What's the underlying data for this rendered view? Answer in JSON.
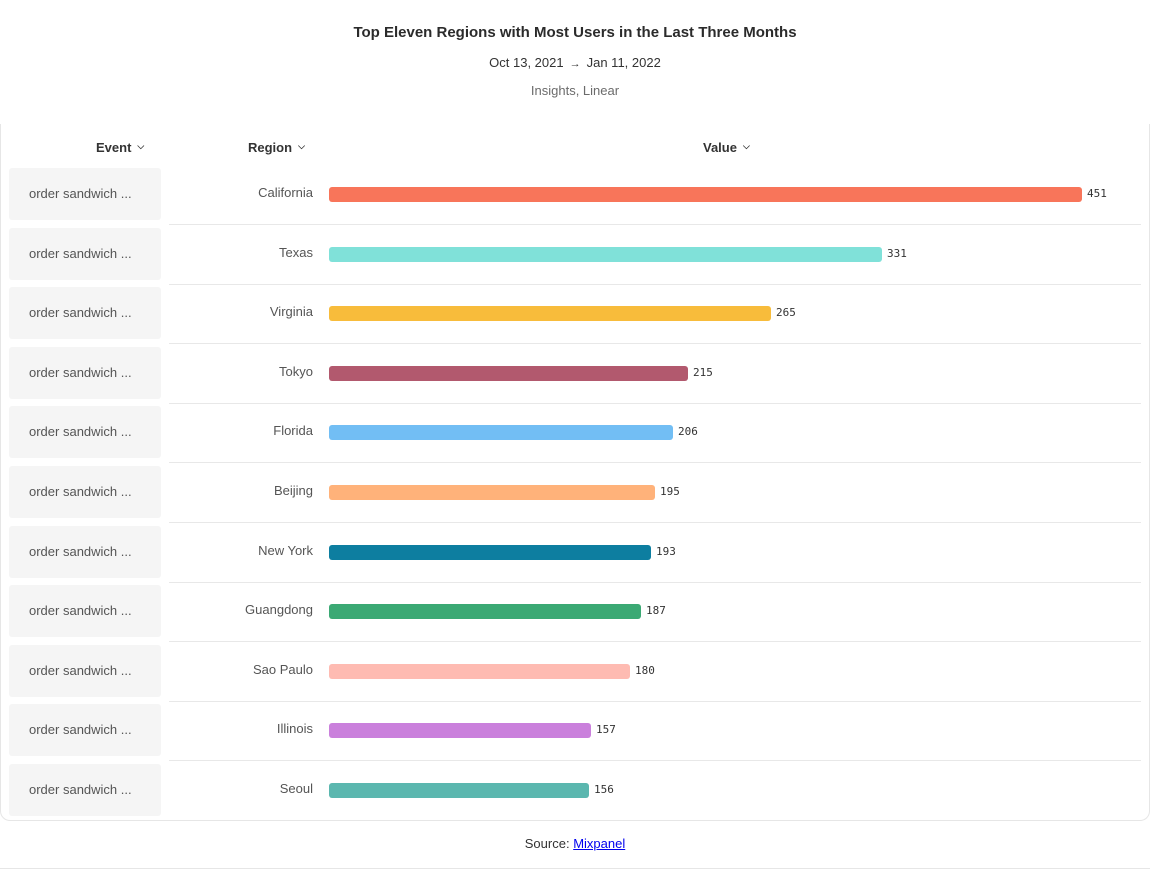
{
  "header": {
    "title": "Top Eleven Regions with Most Users in the Last Three Months",
    "date_start": "Oct 13, 2021",
    "date_arrow": "→",
    "date_end": "Jan 11, 2022",
    "meta": "Insights, Linear"
  },
  "columns": {
    "event": "Event",
    "region": "Region",
    "value": "Value"
  },
  "footer": {
    "source_label": "Source:",
    "source_link": "Mixpanel"
  },
  "chart_data": {
    "type": "bar",
    "orientation": "horizontal",
    "title": "Top Eleven Regions with Most Users in the Last Three Months",
    "xlim": [
      0,
      451
    ],
    "events": [
      "order sandwich ...",
      "order sandwich ...",
      "order sandwich ...",
      "order sandwich ...",
      "order sandwich ...",
      "order sandwich ...",
      "order sandwich ...",
      "order sandwich ...",
      "order sandwich ...",
      "order sandwich ...",
      "order sandwich ..."
    ],
    "categories": [
      "California",
      "Texas",
      "Virginia",
      "Tokyo",
      "Florida",
      "Beijing",
      "New York",
      "Guangdong",
      "Sao Paulo",
      "Illinois",
      "Seoul"
    ],
    "values": [
      451,
      331,
      265,
      215,
      206,
      195,
      193,
      187,
      180,
      157,
      156
    ],
    "colors": [
      "#F8755A",
      "#80E1D9",
      "#F8BC3B",
      "#B2596E",
      "#72BEF4",
      "#FFB27A",
      "#0D7EA0",
      "#3BA974",
      "#FEBBB2",
      "#CA80DC",
      "#5BB7AF"
    ]
  }
}
